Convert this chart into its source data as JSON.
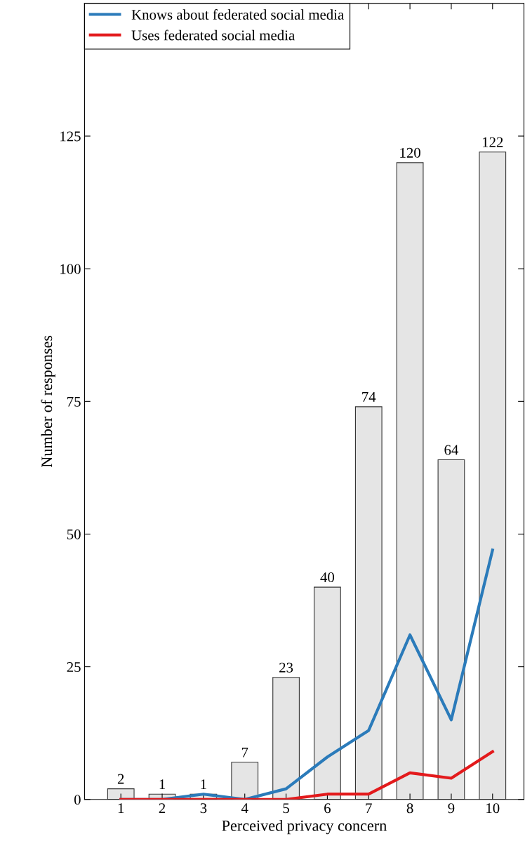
{
  "chart_data": {
    "type": "bar",
    "xlabel": "Perceived privacy concern",
    "ylabel": "Number of responses",
    "categories": [
      "1",
      "2",
      "3",
      "4",
      "5",
      "6",
      "7",
      "8",
      "9",
      "10"
    ],
    "series": [
      {
        "color": "#e5e5e5",
        "values": [
          2,
          1,
          1,
          7,
          23,
          40,
          74,
          120,
          64,
          122
        ],
        "value_labels": [
          "2",
          "1",
          "1",
          "7",
          "23",
          "40",
          "74",
          "120",
          "64",
          "122"
        ]
      },
      {
        "type": "line",
        "name": "Knows about federated social media",
        "color": "#2b7bba",
        "values": [
          0,
          0,
          1,
          0,
          2,
          8,
          13,
          31,
          15,
          47
        ]
      },
      {
        "type": "line",
        "name": "Uses federated social media",
        "color": "#e31a1c",
        "values": [
          0,
          0,
          0,
          0,
          0,
          1,
          1,
          5,
          4,
          9
        ]
      }
    ],
    "ylim": [
      0,
      150
    ],
    "yticks": [
      0,
      25,
      50,
      75,
      100,
      125
    ],
    "legend": "top left",
    "grid": false
  }
}
